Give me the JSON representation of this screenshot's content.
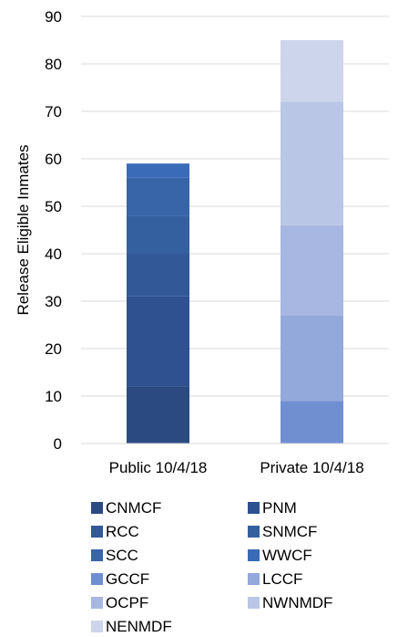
{
  "chart_data": {
    "type": "bar",
    "stacked": true,
    "categories": [
      "Public 10/4/18",
      "Private 10/4/18"
    ],
    "ylabel": "Release Eligible Inmates",
    "ylim": [
      0,
      90
    ],
    "yticks": [
      0,
      10,
      20,
      30,
      40,
      50,
      60,
      70,
      80,
      90
    ],
    "grid": true,
    "legend_position": "bottom",
    "series": [
      {
        "name": "CNMCF",
        "color": "#2c4a82",
        "values": [
          12,
          0
        ]
      },
      {
        "name": "PNM",
        "color": "#2f5190",
        "values": [
          19,
          0
        ]
      },
      {
        "name": "RCC",
        "color": "#325898",
        "values": [
          9,
          0
        ]
      },
      {
        "name": "SNMCF",
        "color": "#35609f",
        "values": [
          8,
          0
        ]
      },
      {
        "name": "SCC",
        "color": "#3864a8",
        "values": [
          8,
          0
        ]
      },
      {
        "name": "WWCF",
        "color": "#3a6bb8",
        "values": [
          3,
          0
        ]
      },
      {
        "name": "GCCF",
        "color": "#6f8fd1",
        "values": [
          0,
          9
        ]
      },
      {
        "name": "LCCF",
        "color": "#93a8db",
        "values": [
          0,
          18
        ]
      },
      {
        "name": "OCPF",
        "color": "#a7b7e1",
        "values": [
          0,
          19
        ]
      },
      {
        "name": "NWNMDF",
        "color": "#bac6e6",
        "values": [
          0,
          26
        ]
      },
      {
        "name": "NENMDF",
        "color": "#cdd5ec",
        "values": [
          0,
          13
        ]
      }
    ]
  }
}
